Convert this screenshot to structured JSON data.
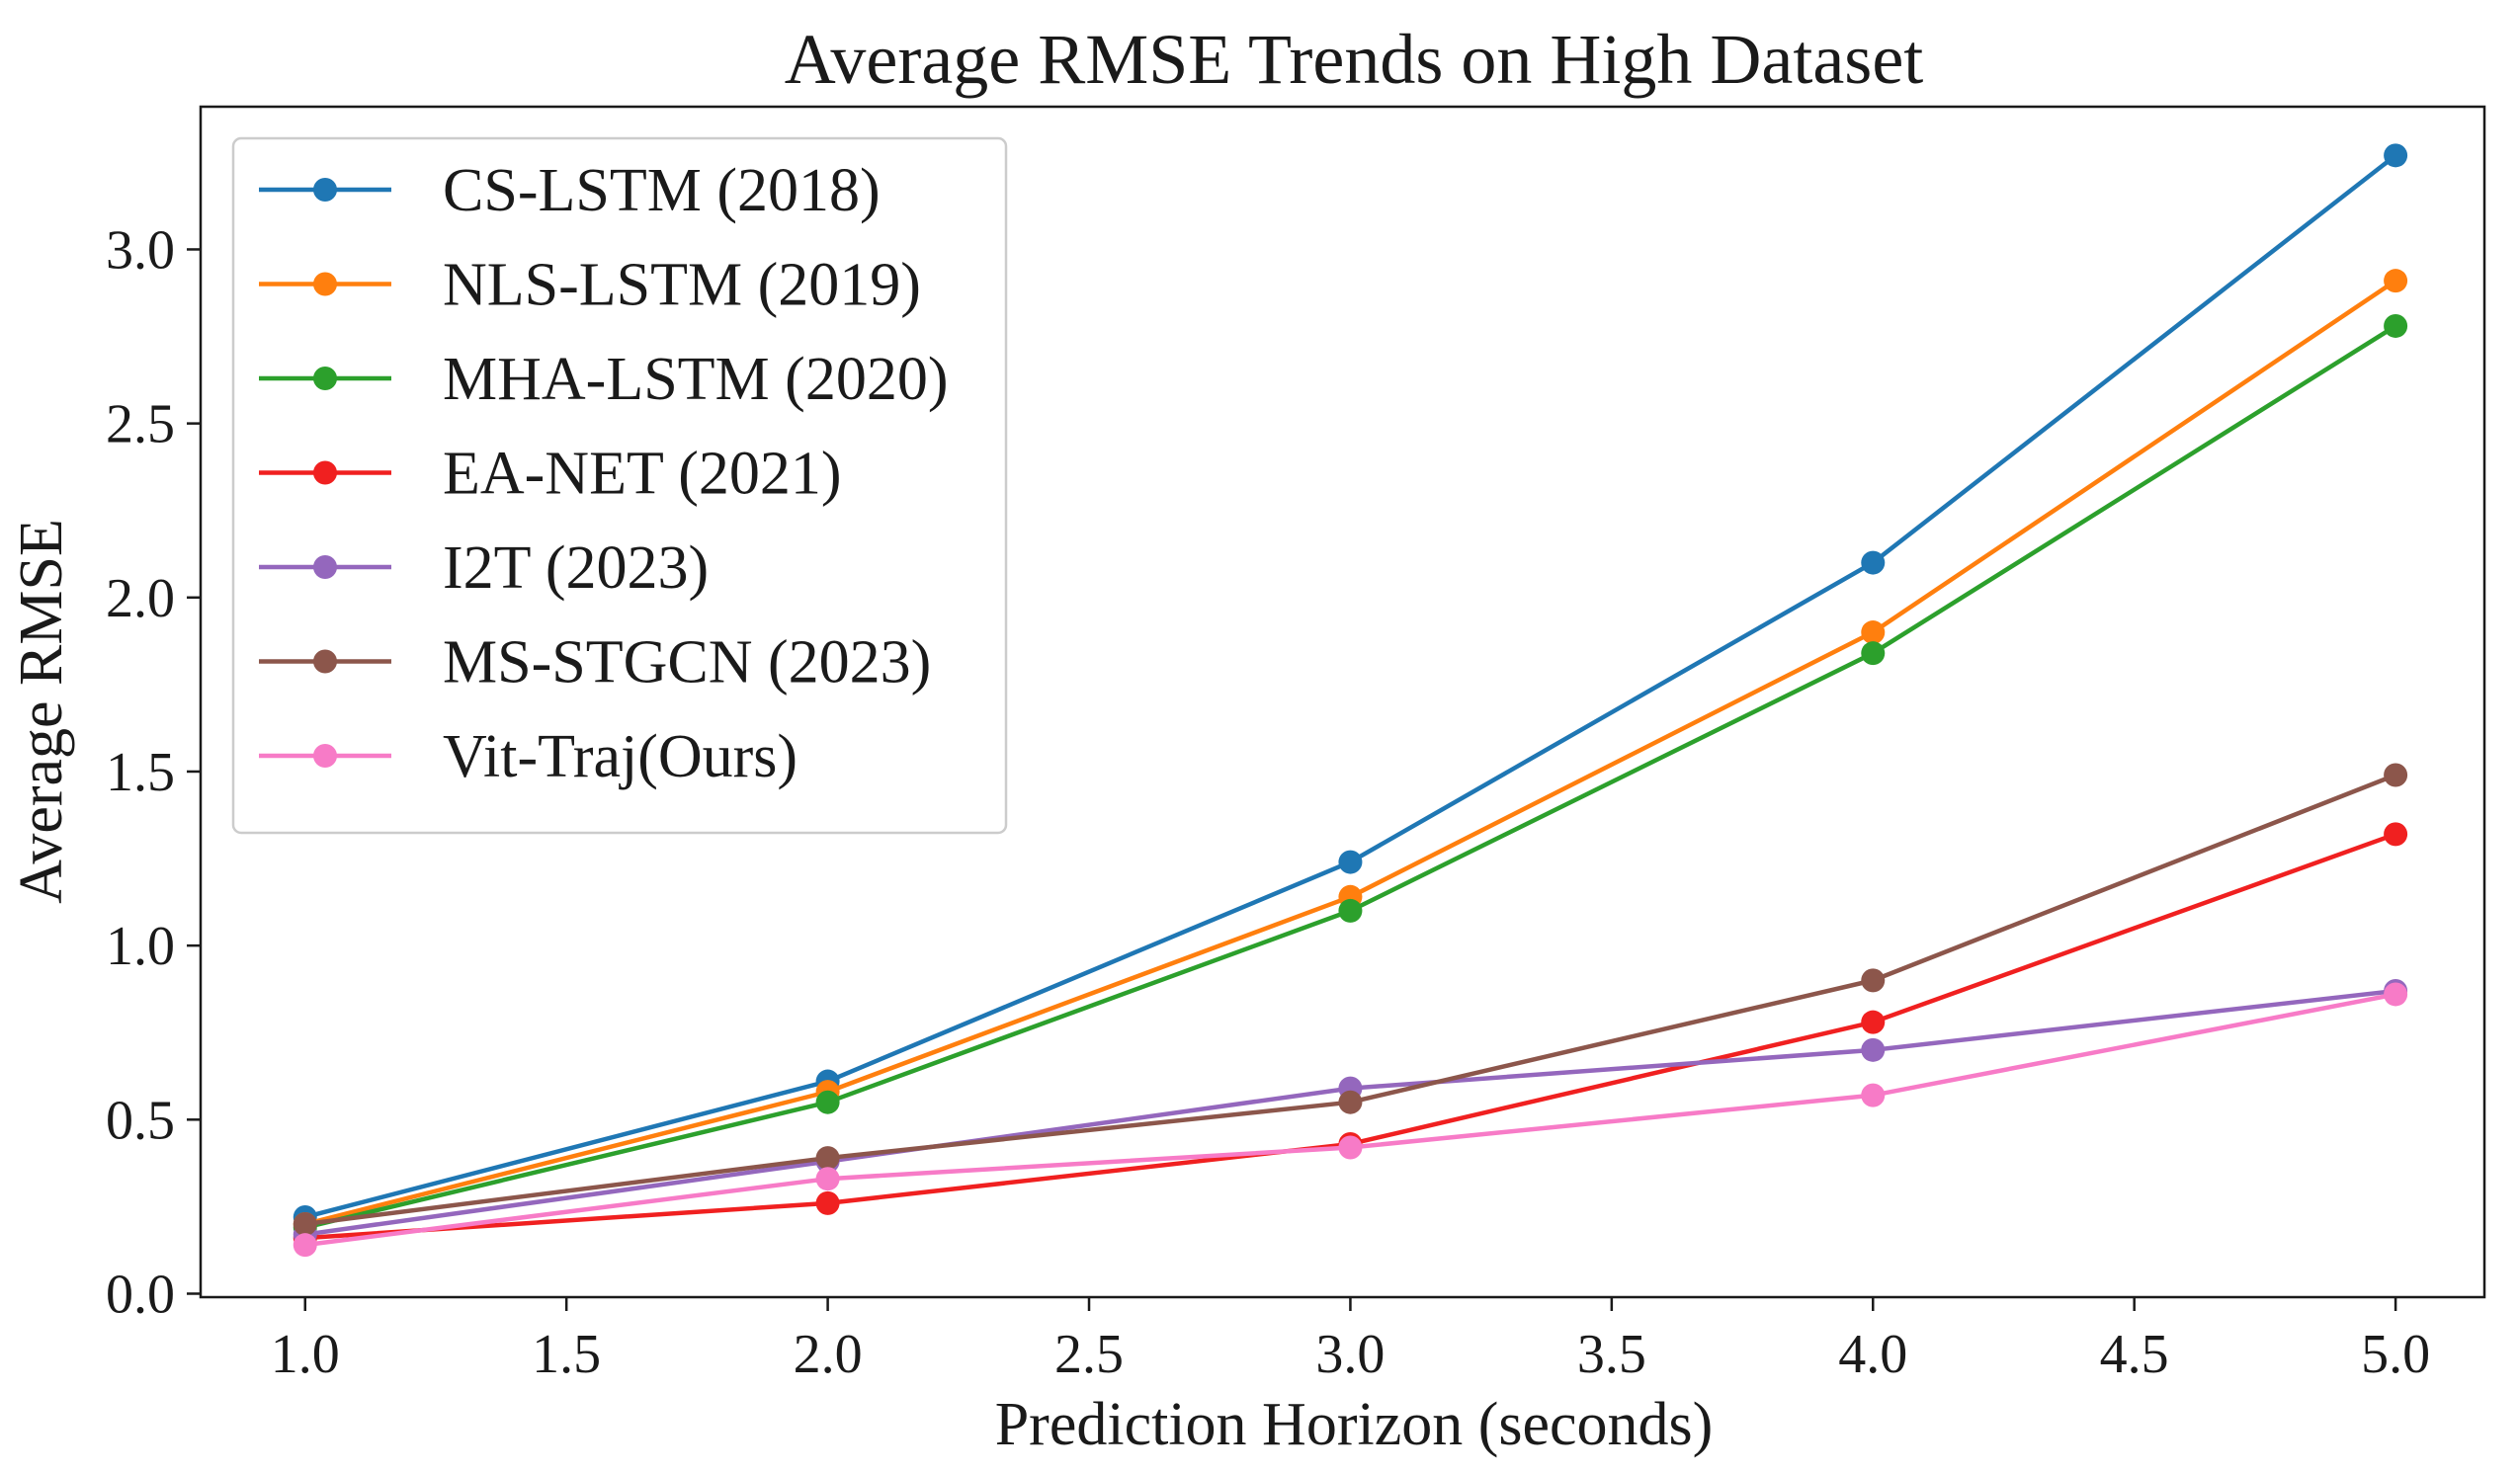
{
  "chart_data": {
    "type": "line",
    "title": "Average RMSE Trends on High Dataset",
    "xlabel": "Prediction Horizon (seconds)",
    "ylabel": "Average RMSE",
    "xlim": [
      0.8,
      5.17
    ],
    "ylim": [
      -0.01,
      3.41
    ],
    "xticks": [
      1.0,
      1.5,
      2.0,
      2.5,
      3.0,
      3.5,
      4.0,
      4.5,
      5.0
    ],
    "xtick_labels": [
      "1.0",
      "1.5",
      "2.0",
      "2.5",
      "3.0",
      "3.5",
      "4.0",
      "4.5",
      "5.0"
    ],
    "yticks": [
      0.0,
      0.5,
      1.0,
      1.5,
      2.0,
      2.5,
      3.0
    ],
    "ytick_labels": [
      "0.0",
      "0.5",
      "1.0",
      "1.5",
      "2.0",
      "2.5",
      "3.0"
    ],
    "x": [
      1.0,
      2.0,
      3.0,
      4.0,
      5.0
    ],
    "legend_position": "top-left",
    "grid": false,
    "series": [
      {
        "name": "CS-LSTM (2018)",
        "color": "#1f77b4",
        "values": [
          0.22,
          0.61,
          1.24,
          2.1,
          3.27
        ]
      },
      {
        "name": "NLS-LSTM (2019)",
        "color": "#ff7f0e",
        "values": [
          0.2,
          0.58,
          1.14,
          1.9,
          2.91
        ]
      },
      {
        "name": "MHA-LSTM (2020)",
        "color": "#2ca02c",
        "values": [
          0.19,
          0.55,
          1.1,
          1.84,
          2.78
        ]
      },
      {
        "name": "EA-NET (2021)",
        "color": "#f02020",
        "values": [
          0.16,
          0.26,
          0.43,
          0.78,
          1.32
        ]
      },
      {
        "name": "I2T (2023)",
        "color": "#9467bd",
        "values": [
          0.17,
          0.38,
          0.59,
          0.7,
          0.87
        ]
      },
      {
        "name": "MS-STGCN (2023)",
        "color": "#8c564b",
        "values": [
          0.2,
          0.39,
          0.55,
          0.9,
          1.49
        ]
      },
      {
        "name": "Vit-Traj(Ours)",
        "color": "#f77bc7",
        "values": [
          0.14,
          0.33,
          0.42,
          0.57,
          0.86
        ]
      }
    ]
  }
}
